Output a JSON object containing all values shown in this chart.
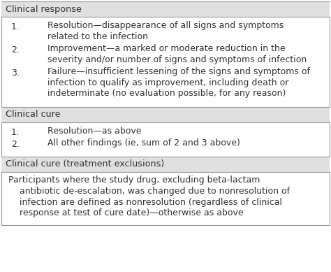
{
  "background_color": "#ffffff",
  "header_bg": "#e0e0e0",
  "border_color": "#999999",
  "sections": [
    {
      "header": "Clinical response",
      "items": [
        {
          "num": "1.",
          "text": "Resolution—disappearance of all signs and symptoms\n    related to the infection"
        },
        {
          "num": "2.",
          "text": "Improvement—a marked or moderate reduction in the\n    severity and/or number of signs and symptoms of infection"
        },
        {
          "num": "3.",
          "text": "Failure—insufficient lessening of the signs and symptoms of\n    infection to qualify as improvement, including death or\n    indeterminate (no evaluation possible, for any reason)"
        }
      ],
      "paragraph": null
    },
    {
      "header": "Clinical cure",
      "items": [
        {
          "num": "1.",
          "text": "Resolution—as above"
        },
        {
          "num": "2.",
          "text": "All other findings (ie, sum of 2 and 3 above)"
        }
      ],
      "paragraph": null
    },
    {
      "header": "Clinical cure (treatment exclusions)",
      "items": [],
      "paragraph": "  Participants where the study drug, excluding beta-lactam\n    antibiotic de-escalation, was changed due to nonresolution of\n    infection are defined as nonresolution (regardless of clinical\n    response at test of cure date)—otherwise as above"
    }
  ],
  "font_size": 9,
  "header_font_size": 9.2,
  "figsize": [
    4.74,
    3.89
  ],
  "dpi": 100
}
